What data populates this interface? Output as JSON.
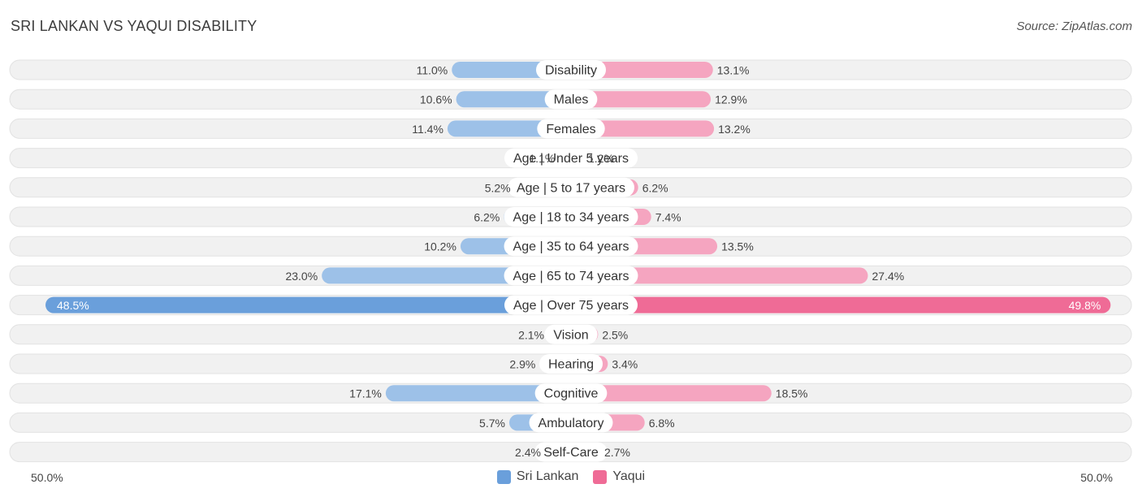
{
  "header": {
    "title": "SRI LANKAN VS YAQUI DISABILITY",
    "source": "Source: ZipAtlas.com"
  },
  "axis": {
    "left_label": "50.0%",
    "right_label": "50.0%"
  },
  "colors": {
    "left_bar": "#9dc1e8",
    "left_bar_strong": "#6a9fdb",
    "right_bar": "#f5a5c0",
    "right_bar_strong": "#ef6b96",
    "track": "#f1f1f1"
  },
  "chart_data": {
    "type": "bar",
    "title": "SRI LANKAN VS YAQUI DISABILITY",
    "orientation": "horizontal-diverging",
    "xlim": [
      -50,
      50
    ],
    "categories": [
      "Disability",
      "Males",
      "Females",
      "Age | Under 5 years",
      "Age | 5 to 17 years",
      "Age | 18 to 34 years",
      "Age | 35 to 64 years",
      "Age | 65 to 74 years",
      "Age | Over 75 years",
      "Vision",
      "Hearing",
      "Cognitive",
      "Ambulatory",
      "Self-Care"
    ],
    "series": [
      {
        "name": "Sri Lankan",
        "values": [
          11.0,
          10.6,
          11.4,
          1.1,
          5.2,
          6.2,
          10.2,
          23.0,
          48.5,
          2.1,
          2.9,
          17.1,
          5.7,
          2.4
        ],
        "labels": [
          "11.0%",
          "10.6%",
          "11.4%",
          "1.1%",
          "5.2%",
          "6.2%",
          "10.2%",
          "23.0%",
          "48.5%",
          "2.1%",
          "2.9%",
          "17.1%",
          "5.7%",
          "2.4%"
        ]
      },
      {
        "name": "Yaqui",
        "values": [
          13.1,
          12.9,
          13.2,
          1.2,
          6.2,
          7.4,
          13.5,
          27.4,
          49.8,
          2.5,
          3.4,
          18.5,
          6.8,
          2.7
        ],
        "labels": [
          "13.1%",
          "12.9%",
          "13.2%",
          "1.2%",
          "6.2%",
          "7.4%",
          "13.5%",
          "27.4%",
          "49.8%",
          "2.5%",
          "3.4%",
          "18.5%",
          "6.8%",
          "2.7%"
        ]
      }
    ],
    "legend": {
      "position": "bottom-center"
    }
  }
}
